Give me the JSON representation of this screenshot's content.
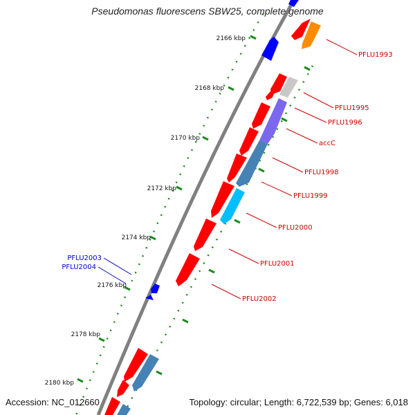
{
  "title": "Pseudomonas fluorescens SBW25, complete genome",
  "footer": {
    "accession": "Accession: NC_012660",
    "summary": "Topology: circular; Length: 6,722,539 bp; Genes: 6,018"
  },
  "colors": {
    "backbone": "#808080",
    "cds": "#ff0000",
    "tick": "#1a8a1a",
    "plus_strand_feature": "#0000ff",
    "highlight_orange": "#ff8c00",
    "highlight_grey": "#c8c8c8",
    "highlight_purple": "#7b68ee",
    "highlight_steelblue": "#4682b4",
    "highlight_cyan": "#00bfff",
    "label_minus": "#cc0000",
    "label_plus": "#0000cc"
  },
  "ticks": [
    "2166 kbp",
    "2168 kbp",
    "2170 kbp",
    "2172 kbp",
    "2174 kbp",
    "2176 kbp",
    "2178 kbp",
    "2180 kbp"
  ],
  "gene_labels_minus": [
    "PFLU1993",
    "PFLU1995",
    "PFLU1996",
    "accC",
    "PFLU1998",
    "PFLU1999",
    "PFLU2000",
    "PFLU2001",
    "PFLU2002"
  ],
  "gene_labels_plus": [
    "PFLU2003",
    "PFLU2004"
  ]
}
